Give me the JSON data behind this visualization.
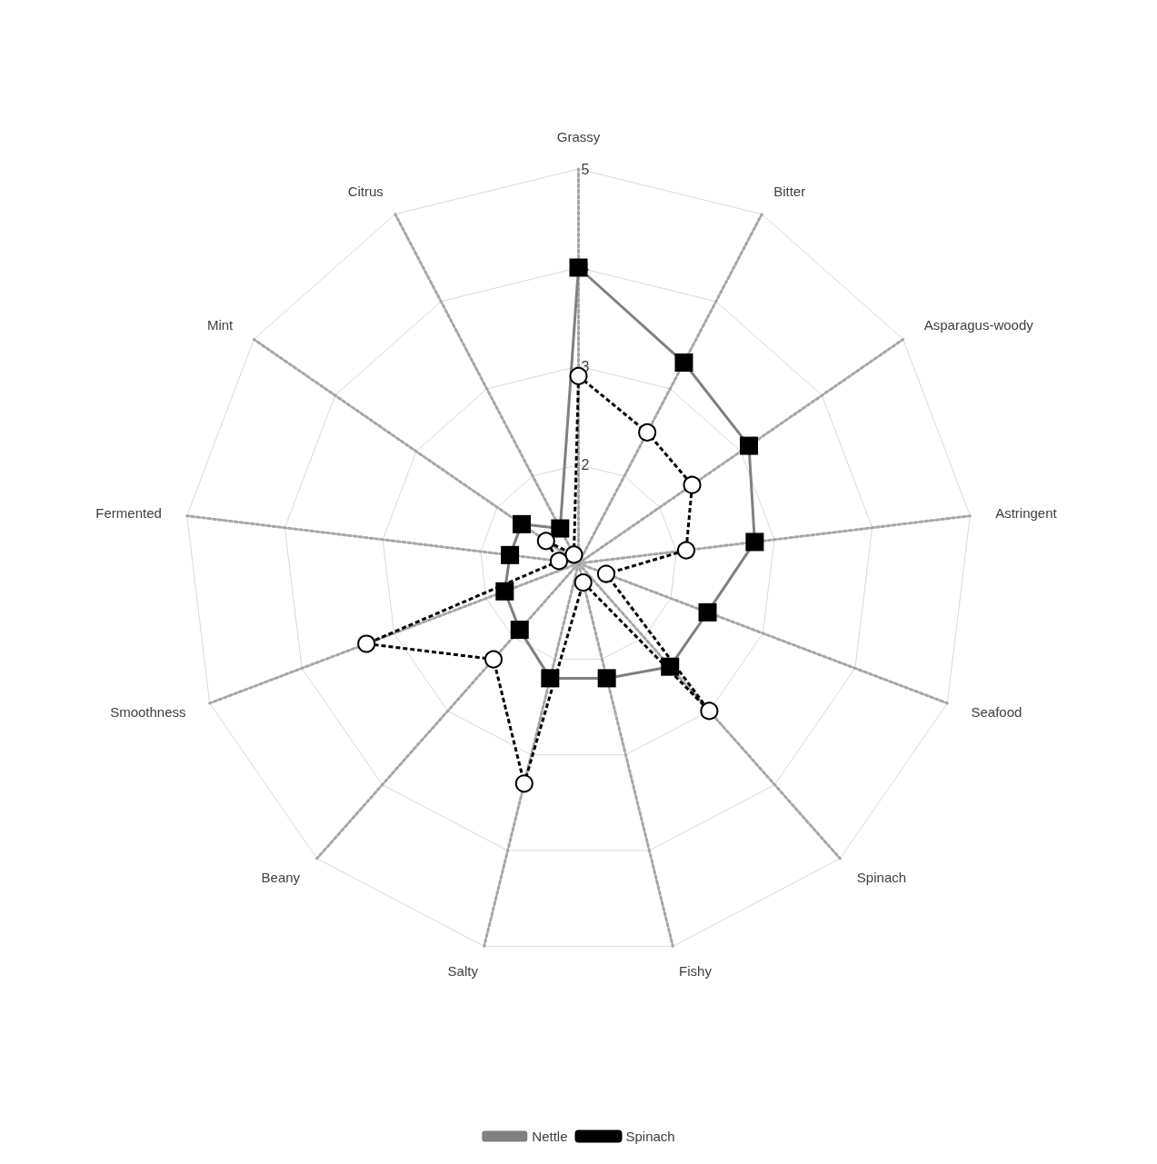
{
  "chart_data": {
    "type": "radar",
    "categories": [
      "Grassy",
      "Bitter",
      "Asparagus-woody",
      "Astringent",
      "Seafood",
      "Spinach",
      "Fishy",
      "Salty",
      "Beany",
      "Smoothness",
      "Fermented",
      "Mint",
      "Citrus"
    ],
    "series": [
      {
        "name": "Nettle",
        "color": "#808080",
        "marker": "square",
        "line_style": "solid",
        "values": [
          4.0,
          3.3,
          3.1,
          2.8,
          2.4,
          2.4,
          2.2,
          2.2,
          1.9,
          1.8,
          1.7,
          1.7,
          1.4
        ]
      },
      {
        "name": "Spinach",
        "color": "#000000",
        "marker": "circle",
        "line_style": "dashed",
        "values": [
          2.9,
          2.5,
          2.4,
          2.1,
          1.3,
          3.0,
          1.2,
          3.3,
          2.3,
          3.3,
          1.2,
          1.4,
          1.1
        ]
      }
    ],
    "ylim": [
      1,
      5
    ],
    "yticks": [
      2,
      3,
      4,
      5
    ],
    "grid": true,
    "legend": "bottom"
  }
}
